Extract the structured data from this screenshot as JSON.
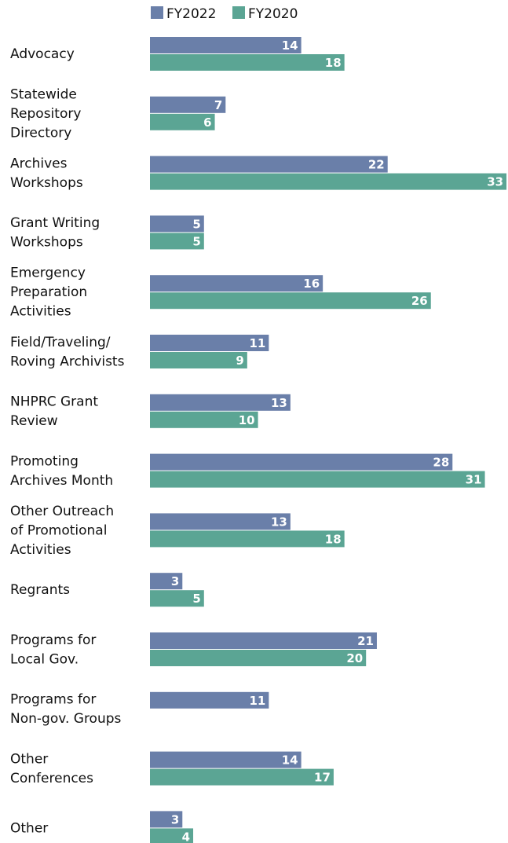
{
  "chart_data": {
    "type": "bar",
    "orientation": "horizontal",
    "legend": {
      "placement": "top"
    },
    "grid": false,
    "categories": [
      [
        "Advocacy"
      ],
      [
        "Statewide",
        "Repository",
        "Directory"
      ],
      [
        "Archives",
        "Workshops"
      ],
      [
        "Grant Writing",
        "Workshops"
      ],
      [
        "Emergency",
        "Preparation",
        "Activities"
      ],
      [
        "Field/Traveling/",
        "Roving Archivists"
      ],
      [
        "NHPRC Grant",
        "Review"
      ],
      [
        "Promoting",
        "Archives Month"
      ],
      [
        "Other Outreach",
        "of Promotional",
        "Activities"
      ],
      [
        "Regrants"
      ],
      [
        "Programs for",
        "Local Gov."
      ],
      [
        "Programs for",
        "Non-gov. Groups"
      ],
      [
        "Other",
        "Conferences"
      ],
      [
        "Other"
      ]
    ],
    "series": [
      {
        "name": "FY2022",
        "color": "#6a7fa9",
        "values": [
          14,
          7,
          22,
          5,
          16,
          11,
          13,
          28,
          13,
          3,
          21,
          11,
          14,
          3
        ]
      },
      {
        "name": "FY2020",
        "color": "#5ba594",
        "values": [
          18,
          6,
          33,
          5,
          26,
          9,
          10,
          31,
          18,
          5,
          20,
          null,
          17,
          4
        ]
      }
    ],
    "xlim": [
      0,
      33
    ]
  }
}
